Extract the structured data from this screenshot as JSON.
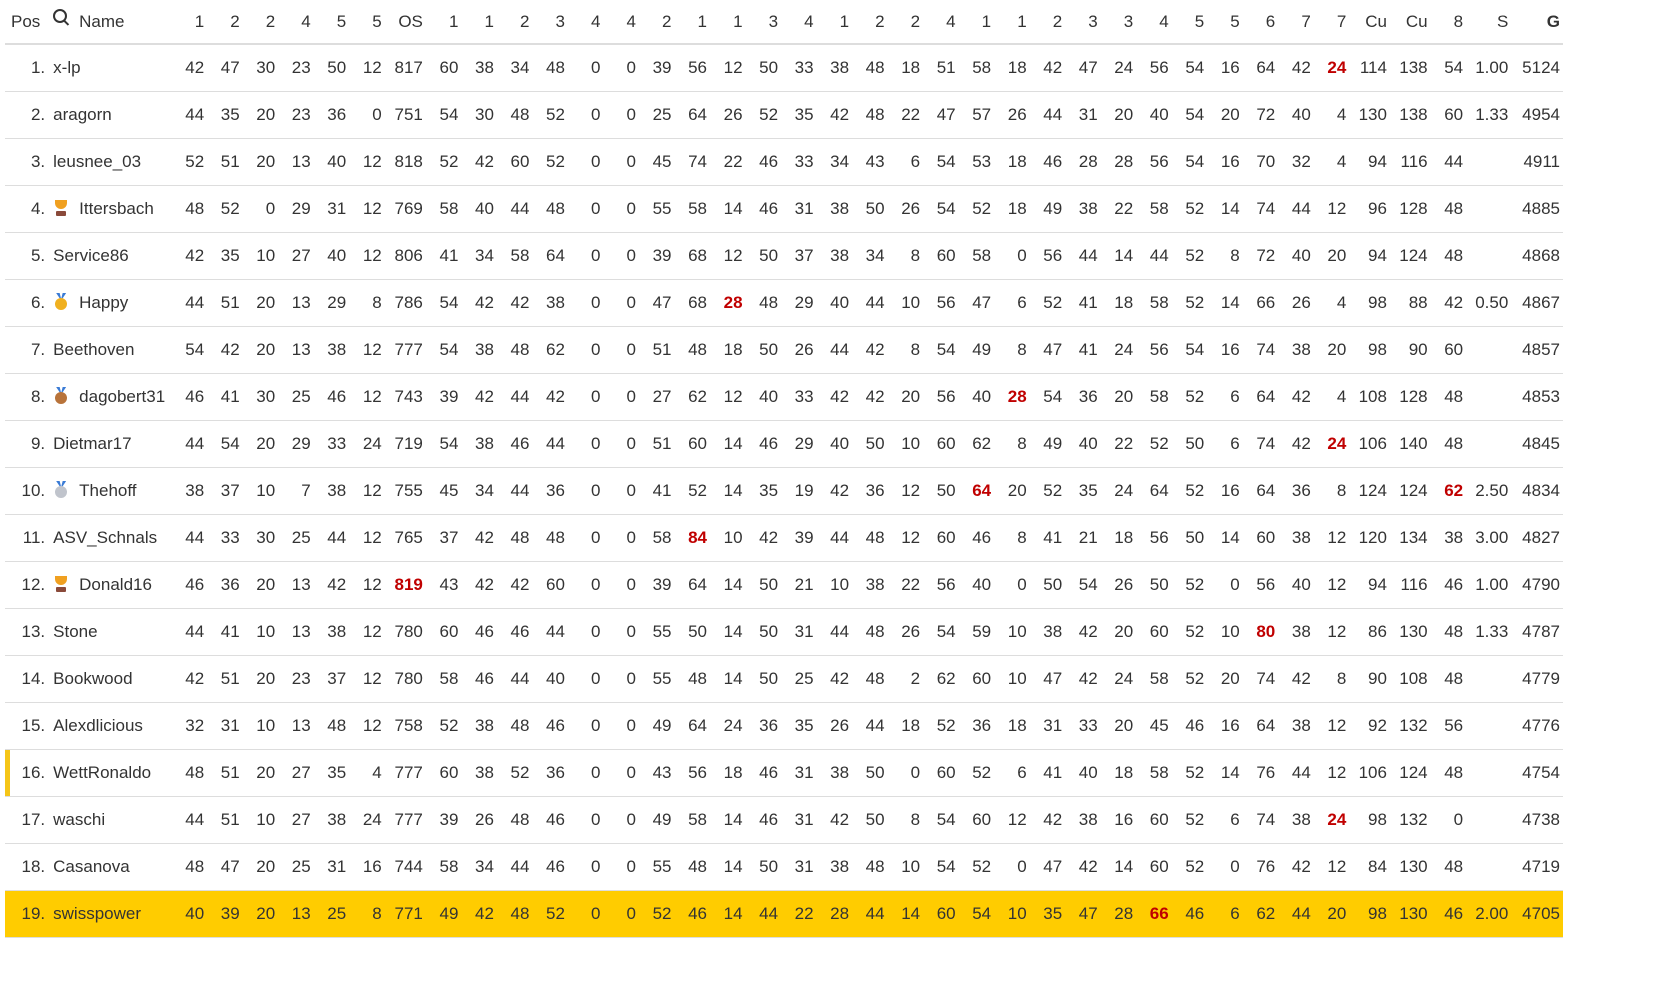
{
  "header": {
    "pos": "Pos",
    "search_icon": "search-icon",
    "name": "Name",
    "columns": [
      "1",
      "2",
      "2",
      "4",
      "5",
      "5",
      "OS",
      "1",
      "1",
      "2",
      "3",
      "4",
      "4",
      "2",
      "1",
      "1",
      "3",
      "4",
      "1",
      "2",
      "2",
      "4",
      "1",
      "1",
      "2",
      "3",
      "3",
      "4",
      "5",
      "5",
      "6",
      "7",
      "7",
      "Cu",
      "Cu",
      "8",
      "S",
      "G"
    ]
  },
  "colors": {
    "highlight_text": "#c00000",
    "current_user_row": "#ffcc00",
    "marker": "#f5c518"
  },
  "rows": [
    {
      "pos": "1.",
      "name": "x-lp",
      "icon": "",
      "cells": [
        "42",
        "47",
        "30",
        "23",
        "50",
        "12",
        "817",
        "60",
        "38",
        "34",
        "48",
        "0",
        "0",
        "39",
        "56",
        "12",
        "50",
        "33",
        "38",
        "48",
        "18",
        "51",
        "58",
        "18",
        "42",
        "47",
        "24",
        "56",
        "54",
        "16",
        "64",
        "42",
        "24",
        "114",
        "138",
        "54",
        "1.00",
        "5124"
      ],
      "highlight": [
        32
      ]
    },
    {
      "pos": "2.",
      "name": "aragorn",
      "icon": "",
      "cells": [
        "44",
        "35",
        "20",
        "23",
        "36",
        "0",
        "751",
        "54",
        "30",
        "48",
        "52",
        "0",
        "0",
        "25",
        "64",
        "26",
        "52",
        "35",
        "42",
        "48",
        "22",
        "47",
        "57",
        "26",
        "44",
        "31",
        "20",
        "40",
        "54",
        "20",
        "72",
        "40",
        "4",
        "130",
        "138",
        "60",
        "1.33",
        "4954"
      ],
      "highlight": []
    },
    {
      "pos": "3.",
      "name": "leusnee_03",
      "icon": "",
      "cells": [
        "52",
        "51",
        "20",
        "13",
        "40",
        "12",
        "818",
        "52",
        "42",
        "60",
        "52",
        "0",
        "0",
        "45",
        "74",
        "22",
        "46",
        "33",
        "34",
        "43",
        "6",
        "54",
        "53",
        "18",
        "46",
        "28",
        "28",
        "56",
        "54",
        "16",
        "70",
        "32",
        "4",
        "94",
        "116",
        "44",
        "",
        "4911"
      ],
      "highlight": []
    },
    {
      "pos": "4.",
      "name": "Ittersbach",
      "icon": "trophy",
      "cells": [
        "48",
        "52",
        "0",
        "29",
        "31",
        "12",
        "769",
        "58",
        "40",
        "44",
        "48",
        "0",
        "0",
        "55",
        "58",
        "14",
        "46",
        "31",
        "38",
        "50",
        "26",
        "54",
        "52",
        "18",
        "49",
        "38",
        "22",
        "58",
        "52",
        "14",
        "74",
        "44",
        "12",
        "96",
        "128",
        "48",
        "",
        "4885"
      ],
      "highlight": []
    },
    {
      "pos": "5.",
      "name": "Service86",
      "icon": "",
      "cells": [
        "42",
        "35",
        "10",
        "27",
        "40",
        "12",
        "806",
        "41",
        "34",
        "58",
        "64",
        "0",
        "0",
        "39",
        "68",
        "12",
        "50",
        "37",
        "38",
        "34",
        "8",
        "60",
        "58",
        "0",
        "56",
        "44",
        "14",
        "44",
        "52",
        "8",
        "72",
        "40",
        "20",
        "94",
        "124",
        "48",
        "",
        "4868"
      ],
      "highlight": []
    },
    {
      "pos": "6.",
      "name": "Happy",
      "icon": "medal-gold",
      "cells": [
        "44",
        "51",
        "20",
        "13",
        "29",
        "8",
        "786",
        "54",
        "42",
        "42",
        "38",
        "0",
        "0",
        "47",
        "68",
        "28",
        "48",
        "29",
        "40",
        "44",
        "10",
        "56",
        "47",
        "6",
        "52",
        "41",
        "18",
        "58",
        "52",
        "14",
        "66",
        "26",
        "4",
        "98",
        "88",
        "42",
        "0.50",
        "4867"
      ],
      "highlight": [
        15
      ]
    },
    {
      "pos": "7.",
      "name": "Beethoven",
      "icon": "",
      "cells": [
        "54",
        "42",
        "20",
        "13",
        "38",
        "12",
        "777",
        "54",
        "38",
        "48",
        "62",
        "0",
        "0",
        "51",
        "48",
        "18",
        "50",
        "26",
        "44",
        "42",
        "8",
        "54",
        "49",
        "8",
        "47",
        "41",
        "24",
        "56",
        "54",
        "16",
        "74",
        "38",
        "20",
        "98",
        "90",
        "60",
        "",
        "4857"
      ],
      "highlight": []
    },
    {
      "pos": "8.",
      "name": "dagobert31",
      "icon": "medal-bronze",
      "cells": [
        "46",
        "41",
        "30",
        "25",
        "46",
        "12",
        "743",
        "39",
        "42",
        "44",
        "42",
        "0",
        "0",
        "27",
        "62",
        "12",
        "40",
        "33",
        "42",
        "42",
        "20",
        "56",
        "40",
        "28",
        "54",
        "36",
        "20",
        "58",
        "52",
        "6",
        "64",
        "42",
        "4",
        "108",
        "128",
        "48",
        "",
        "4853"
      ],
      "highlight": [
        23
      ]
    },
    {
      "pos": "9.",
      "name": "Dietmar17",
      "icon": "",
      "cells": [
        "44",
        "54",
        "20",
        "29",
        "33",
        "24",
        "719",
        "54",
        "38",
        "46",
        "44",
        "0",
        "0",
        "51",
        "60",
        "14",
        "46",
        "29",
        "40",
        "50",
        "10",
        "60",
        "62",
        "8",
        "49",
        "40",
        "22",
        "52",
        "50",
        "6",
        "74",
        "42",
        "24",
        "106",
        "140",
        "48",
        "",
        "4845"
      ],
      "highlight": [
        32
      ]
    },
    {
      "pos": "10.",
      "name": "Thehoff",
      "icon": "medal-silver",
      "cells": [
        "38",
        "37",
        "10",
        "7",
        "38",
        "12",
        "755",
        "45",
        "34",
        "44",
        "36",
        "0",
        "0",
        "41",
        "52",
        "14",
        "35",
        "19",
        "42",
        "36",
        "12",
        "50",
        "64",
        "20",
        "52",
        "35",
        "24",
        "64",
        "52",
        "16",
        "64",
        "36",
        "8",
        "124",
        "124",
        "62",
        "2.50",
        "4834"
      ],
      "highlight": [
        22,
        35
      ]
    },
    {
      "pos": "11.",
      "name": "ASV_Schnals",
      "icon": "",
      "cells": [
        "44",
        "33",
        "30",
        "25",
        "44",
        "12",
        "765",
        "37",
        "42",
        "48",
        "48",
        "0",
        "0",
        "58",
        "84",
        "10",
        "42",
        "39",
        "44",
        "48",
        "12",
        "60",
        "46",
        "8",
        "41",
        "21",
        "18",
        "56",
        "50",
        "14",
        "60",
        "38",
        "12",
        "120",
        "134",
        "38",
        "3.00",
        "4827"
      ],
      "highlight": [
        14
      ]
    },
    {
      "pos": "12.",
      "name": "Donald16",
      "icon": "trophy",
      "cells": [
        "46",
        "36",
        "20",
        "13",
        "42",
        "12",
        "819",
        "43",
        "42",
        "42",
        "60",
        "0",
        "0",
        "39",
        "64",
        "14",
        "50",
        "21",
        "10",
        "38",
        "22",
        "56",
        "40",
        "0",
        "50",
        "54",
        "26",
        "50",
        "52",
        "0",
        "56",
        "40",
        "12",
        "94",
        "116",
        "46",
        "1.00",
        "4790"
      ],
      "highlight": [
        6
      ]
    },
    {
      "pos": "13.",
      "name": "Stone",
      "icon": "",
      "cells": [
        "44",
        "41",
        "10",
        "13",
        "38",
        "12",
        "780",
        "60",
        "46",
        "46",
        "44",
        "0",
        "0",
        "55",
        "50",
        "14",
        "50",
        "31",
        "44",
        "48",
        "26",
        "54",
        "59",
        "10",
        "38",
        "42",
        "20",
        "60",
        "52",
        "10",
        "80",
        "38",
        "12",
        "86",
        "130",
        "48",
        "1.33",
        "4787"
      ],
      "highlight": [
        30
      ]
    },
    {
      "pos": "14.",
      "name": "Bookwood",
      "icon": "",
      "cells": [
        "42",
        "51",
        "20",
        "23",
        "37",
        "12",
        "780",
        "58",
        "46",
        "44",
        "40",
        "0",
        "0",
        "55",
        "48",
        "14",
        "50",
        "25",
        "42",
        "48",
        "2",
        "62",
        "60",
        "10",
        "47",
        "42",
        "24",
        "58",
        "52",
        "20",
        "74",
        "42",
        "8",
        "90",
        "108",
        "48",
        "",
        "4779"
      ],
      "highlight": []
    },
    {
      "pos": "15.",
      "name": "Alexdlicious",
      "icon": "",
      "cells": [
        "32",
        "31",
        "10",
        "13",
        "48",
        "12",
        "758",
        "52",
        "38",
        "48",
        "46",
        "0",
        "0",
        "49",
        "64",
        "24",
        "36",
        "35",
        "26",
        "44",
        "18",
        "52",
        "36",
        "18",
        "31",
        "33",
        "20",
        "45",
        "46",
        "16",
        "64",
        "38",
        "12",
        "92",
        "132",
        "56",
        "",
        "4776"
      ],
      "highlight": []
    },
    {
      "pos": "16.",
      "name": "WettRonaldo",
      "icon": "",
      "marker": true,
      "cells": [
        "48",
        "51",
        "20",
        "27",
        "35",
        "4",
        "777",
        "60",
        "38",
        "52",
        "36",
        "0",
        "0",
        "43",
        "56",
        "18",
        "46",
        "31",
        "38",
        "50",
        "0",
        "60",
        "52",
        "6",
        "41",
        "40",
        "18",
        "58",
        "52",
        "14",
        "76",
        "44",
        "12",
        "106",
        "124",
        "48",
        "",
        "4754"
      ],
      "highlight": []
    },
    {
      "pos": "17.",
      "name": "waschi",
      "icon": "",
      "cells": [
        "44",
        "51",
        "10",
        "27",
        "38",
        "24",
        "777",
        "39",
        "26",
        "48",
        "46",
        "0",
        "0",
        "49",
        "58",
        "14",
        "46",
        "31",
        "42",
        "50",
        "8",
        "54",
        "60",
        "12",
        "42",
        "38",
        "16",
        "60",
        "52",
        "6",
        "74",
        "38",
        "24",
        "98",
        "132",
        "0",
        "",
        "4738"
      ],
      "highlight": [
        32
      ]
    },
    {
      "pos": "18.",
      "name": "Casanova",
      "icon": "",
      "cells": [
        "48",
        "47",
        "20",
        "25",
        "31",
        "16",
        "744",
        "58",
        "34",
        "44",
        "46",
        "0",
        "0",
        "55",
        "48",
        "14",
        "50",
        "31",
        "38",
        "48",
        "10",
        "54",
        "52",
        "0",
        "47",
        "42",
        "14",
        "60",
        "52",
        "0",
        "76",
        "42",
        "12",
        "84",
        "130",
        "48",
        "",
        "4719"
      ],
      "highlight": []
    },
    {
      "pos": "19.",
      "name": "swisspower",
      "icon": "",
      "current": true,
      "cells": [
        "40",
        "39",
        "20",
        "13",
        "25",
        "8",
        "771",
        "49",
        "42",
        "48",
        "52",
        "0",
        "0",
        "52",
        "46",
        "14",
        "44",
        "22",
        "28",
        "44",
        "14",
        "60",
        "54",
        "10",
        "35",
        "47",
        "28",
        "66",
        "46",
        "6",
        "62",
        "44",
        "20",
        "98",
        "130",
        "46",
        "2.00",
        "4705"
      ],
      "highlight": [
        27
      ]
    }
  ]
}
